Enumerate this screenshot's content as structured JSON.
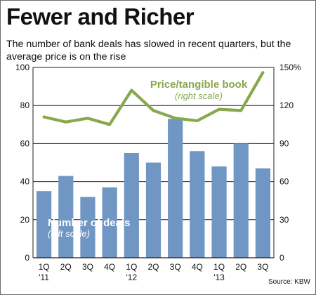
{
  "title": "Fewer and Richer",
  "subtitle": "The number of bank deals has slowed in recent quarters, but the average price is on the rise",
  "source": "Source: KBW",
  "chart_data": {
    "type": "bar",
    "categories": [
      {
        "quarter": "1Q",
        "year": "'11"
      },
      {
        "quarter": "2Q",
        "year": ""
      },
      {
        "quarter": "3Q",
        "year": ""
      },
      {
        "quarter": "4Q",
        "year": ""
      },
      {
        "quarter": "1Q",
        "year": "'12"
      },
      {
        "quarter": "2Q",
        "year": ""
      },
      {
        "quarter": "3Q",
        "year": ""
      },
      {
        "quarter": "4Q",
        "year": ""
      },
      {
        "quarter": "1Q",
        "year": "'13"
      },
      {
        "quarter": "2Q",
        "year": ""
      },
      {
        "quarter": "3Q",
        "year": ""
      }
    ],
    "left_axis": {
      "ticks": [
        "0",
        "20",
        "40",
        "60",
        "80",
        "100"
      ],
      "min": 0,
      "max": 100
    },
    "right_axis": {
      "ticks": [
        "0",
        "30",
        "60",
        "90",
        "120",
        "150%"
      ],
      "min": 0,
      "max": 150
    },
    "grid": true,
    "series": [
      {
        "name": "Number of deals",
        "note": "(left scale)",
        "type": "bar",
        "axis": "left",
        "color": "#7096c4",
        "values": [
          35,
          43,
          32,
          37,
          55,
          50,
          73,
          56,
          48,
          60,
          47
        ]
      },
      {
        "name": "Price/tangible book",
        "note": "(right scale)",
        "type": "line",
        "axis": "right",
        "color": "#88a84e",
        "values": [
          111,
          107,
          110,
          105,
          132,
          116,
          110,
          108,
          117,
          116,
          146
        ]
      }
    ]
  }
}
